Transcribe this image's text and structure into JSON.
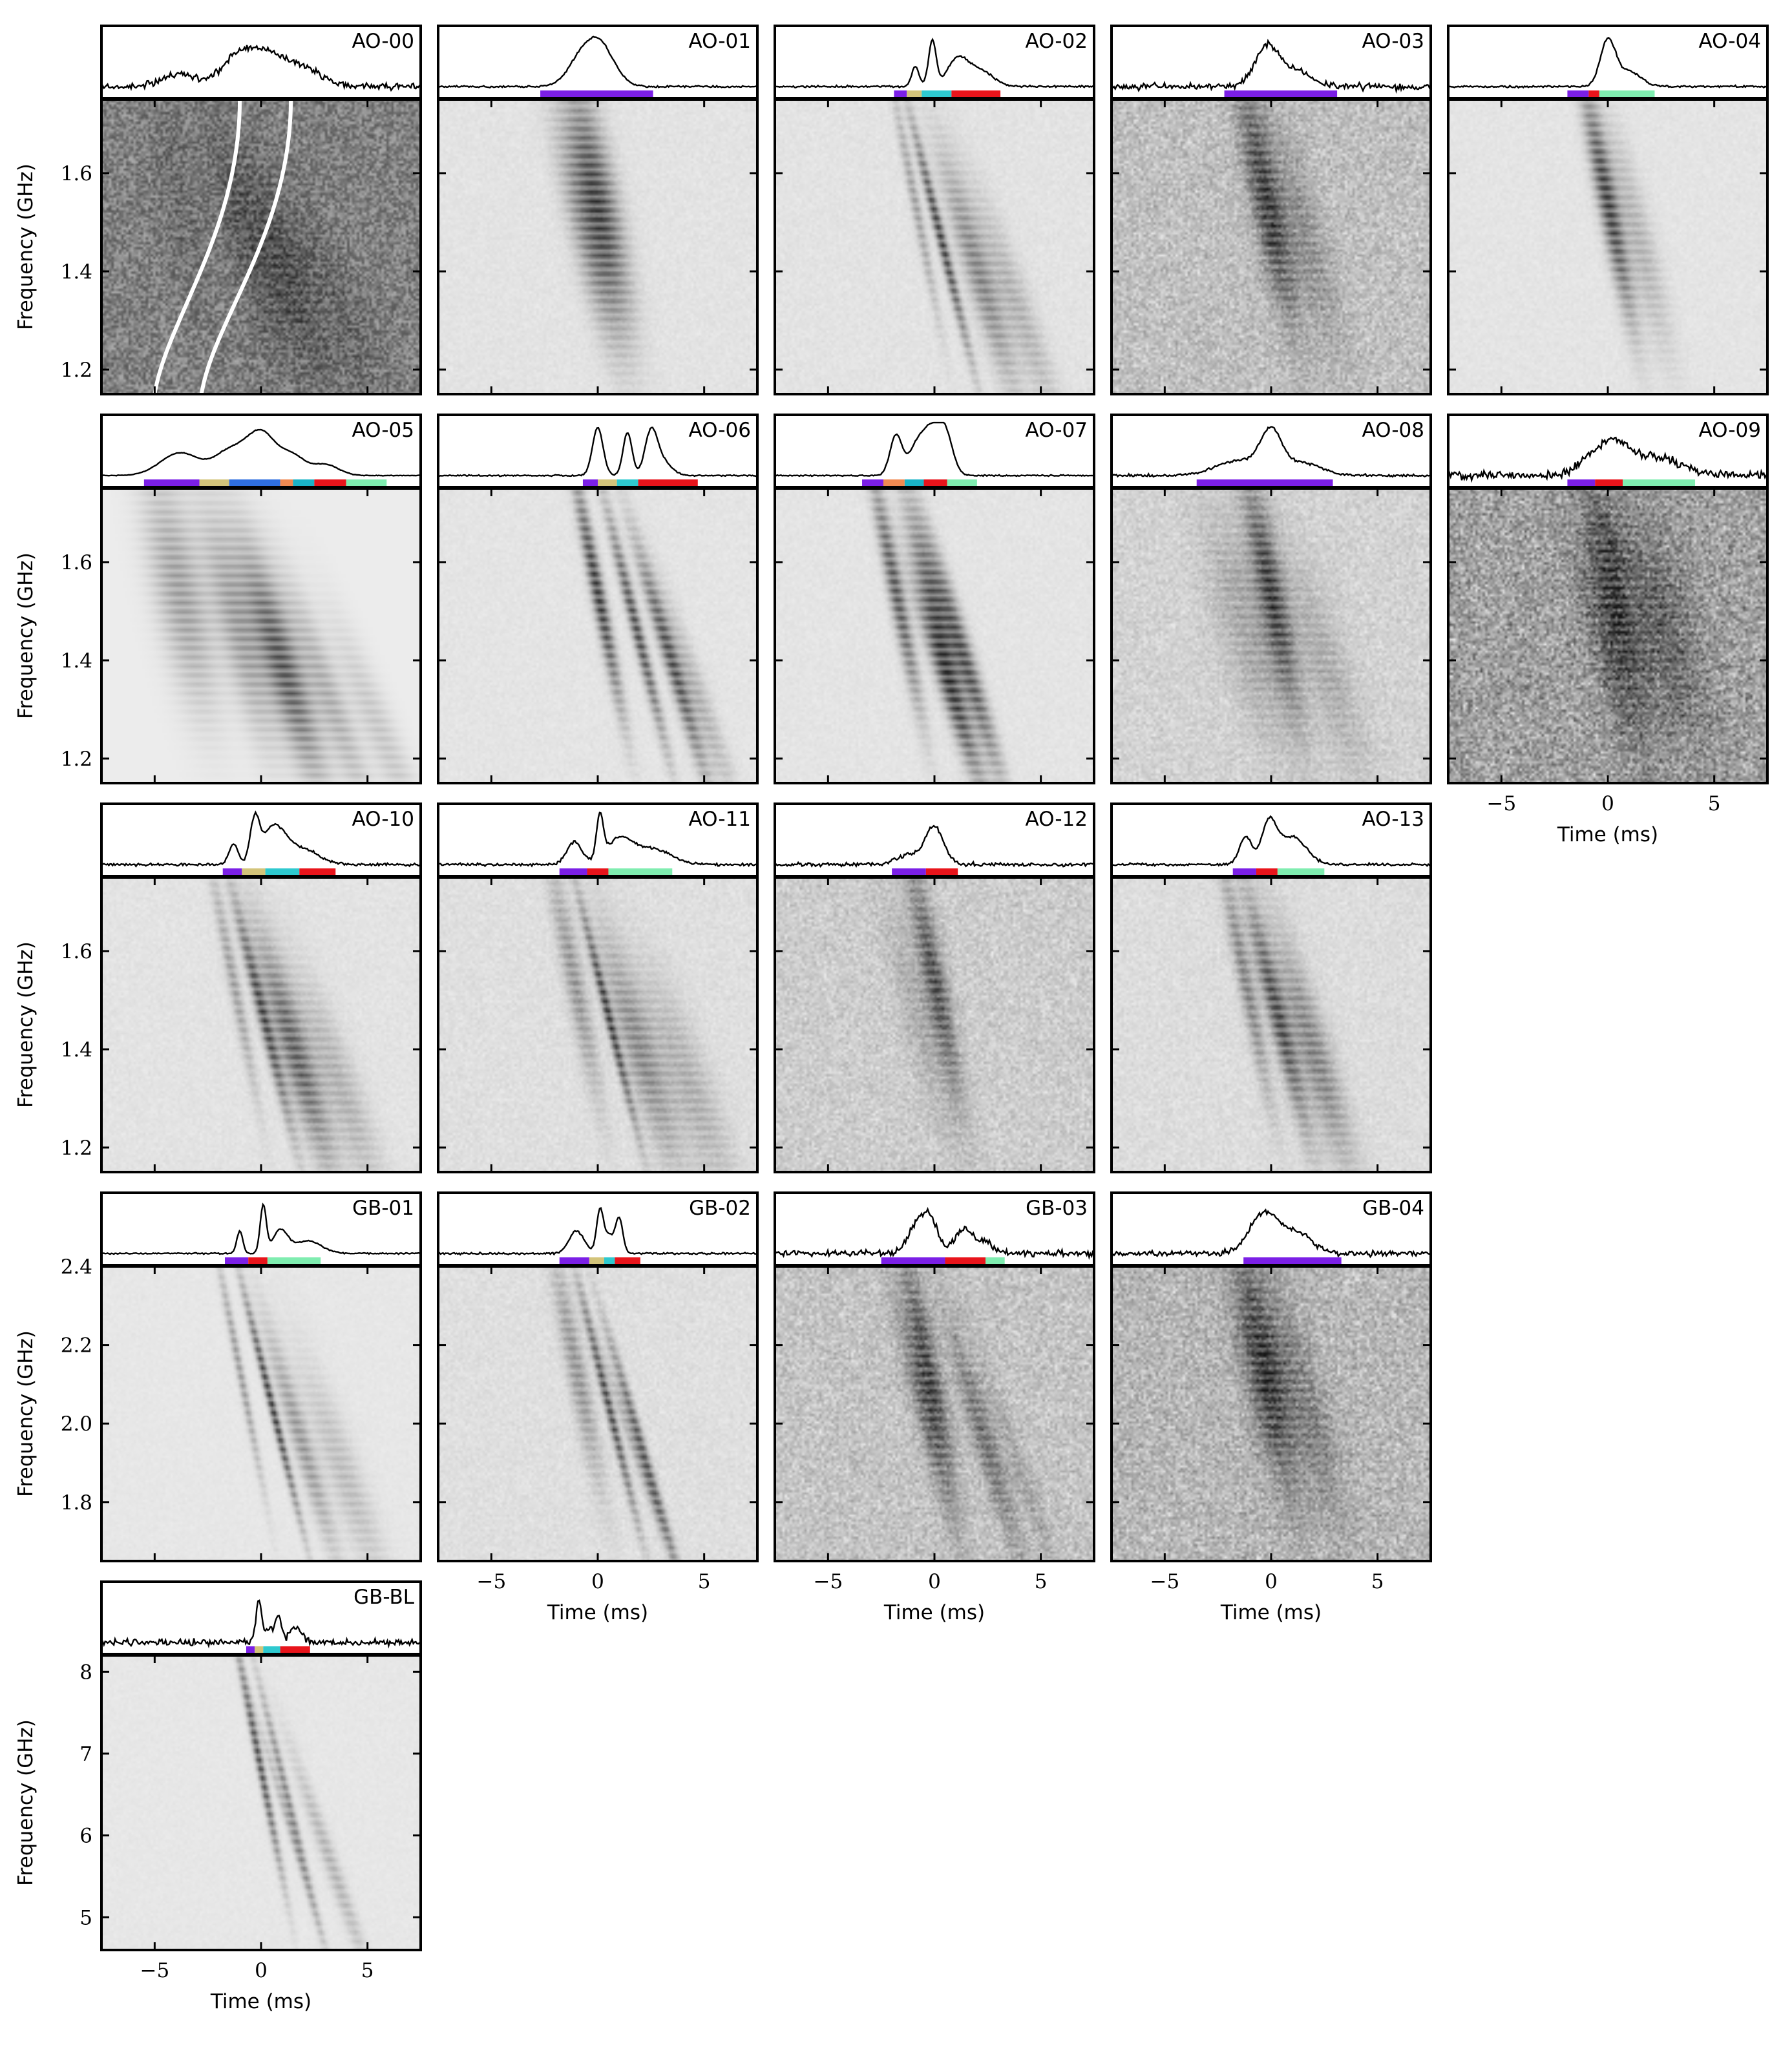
{
  "figure": {
    "background": "#ffffff",
    "colors": {
      "purple": "#7b1fe6",
      "khaki": "#d3c47a",
      "cyan": "#2ec9cf",
      "red": "#e8141b",
      "mint": "#7fedb0",
      "blue": "#2f6fe0",
      "orange": "#f08a52",
      "teal": "#1ab3c7",
      "axes": "#000000"
    }
  },
  "chart_data": [
    {
      "type": "heatmap",
      "title": "AO-00",
      "ylabel": "Frequency (GHz)",
      "xlabel": "",
      "xlim": [
        -7.5,
        7.5
      ],
      "ylim": [
        1.15,
        1.75
      ],
      "yticks": [
        "1.2",
        "1.4",
        "1.6"
      ],
      "xticks": [],
      "noise_level": 0.45,
      "profile": {
        "noise": 0.05,
        "components": [
          {
            "t": -3.8,
            "a": 0.25,
            "w": 1.2
          },
          {
            "t": -1.2,
            "a": 0.5,
            "w": 1.0
          },
          {
            "t": 0.2,
            "a": 0.65,
            "w": 1.2
          },
          {
            "t": 2.0,
            "a": 0.35,
            "w": 1.2
          }
        ]
      },
      "segments": [],
      "drift_lines": true
    },
    {
      "type": "heatmap",
      "title": "AO-01",
      "xlim": [
        -7.5,
        7.5
      ],
      "ylim": [
        1.15,
        1.75
      ],
      "noise_level": 0.07,
      "profile": {
        "noise": 0.015,
        "components": [
          {
            "t": 0.0,
            "a": 0.9,
            "w": 1.0
          },
          {
            "t": -1.0,
            "a": 0.3,
            "w": 0.8
          }
        ]
      },
      "segments": [
        {
          "from": -2.7,
          "to": 2.6,
          "color": "purple"
        }
      ]
    },
    {
      "type": "heatmap",
      "title": "AO-02",
      "xlim": [
        -7.5,
        7.5
      ],
      "ylim": [
        1.15,
        1.75
      ],
      "noise_level": 0.07,
      "profile": {
        "noise": 0.015,
        "components": [
          {
            "t": -0.9,
            "a": 0.4,
            "w": 0.25
          },
          {
            "t": -0.1,
            "a": 0.9,
            "w": 0.25
          },
          {
            "t": 1.1,
            "a": 0.55,
            "w": 0.7
          },
          {
            "t": 2.2,
            "a": 0.3,
            "w": 0.8
          }
        ]
      },
      "segments": [
        {
          "from": -1.9,
          "to": -1.3,
          "color": "purple"
        },
        {
          "from": -1.3,
          "to": -0.6,
          "color": "khaki"
        },
        {
          "from": -0.6,
          "to": 0.8,
          "color": "cyan"
        },
        {
          "from": 0.8,
          "to": 3.1,
          "color": "red"
        }
      ]
    },
    {
      "type": "heatmap",
      "title": "AO-03",
      "xlim": [
        -7.5,
        7.5
      ],
      "ylim": [
        1.15,
        1.75
      ],
      "noise_level": 0.35,
      "profile": {
        "noise": 0.05,
        "components": [
          {
            "t": -0.2,
            "a": 0.8,
            "w": 0.8
          },
          {
            "t": 1.2,
            "a": 0.3,
            "w": 1.0
          }
        ]
      },
      "segments": [
        {
          "from": -2.2,
          "to": 3.1,
          "color": "purple"
        }
      ]
    },
    {
      "type": "heatmap",
      "title": "AO-04",
      "xlim": [
        -7.5,
        7.5
      ],
      "ylim": [
        1.15,
        1.75
      ],
      "noise_level": 0.06,
      "profile": {
        "noise": 0.015,
        "components": [
          {
            "t": 0.0,
            "a": 0.9,
            "w": 0.5
          },
          {
            "t": 1.0,
            "a": 0.3,
            "w": 0.8
          }
        ]
      },
      "segments": [
        {
          "from": -1.9,
          "to": -0.9,
          "color": "purple"
        },
        {
          "from": -0.9,
          "to": -0.4,
          "color": "red"
        },
        {
          "from": -0.4,
          "to": 2.2,
          "color": "mint"
        }
      ]
    },
    {
      "type": "heatmap",
      "title": "AO-05",
      "ylabel": "Frequency (GHz)",
      "xlim": [
        -7.5,
        7.5
      ],
      "ylim": [
        1.15,
        1.75
      ],
      "yticks": [
        "1.2",
        "1.4",
        "1.6"
      ],
      "noise_level": 0.0,
      "profile": {
        "noise": 0.005,
        "components": [
          {
            "t": -3.8,
            "a": 0.45,
            "w": 1.3
          },
          {
            "t": -1.5,
            "a": 0.45,
            "w": 1.0
          },
          {
            "t": 0.0,
            "a": 0.85,
            "w": 1.0
          },
          {
            "t": 1.5,
            "a": 0.35,
            "w": 0.8
          },
          {
            "t": 3.0,
            "a": 0.22,
            "w": 0.9
          }
        ]
      },
      "segments": [
        {
          "from": -5.5,
          "to": -2.9,
          "color": "purple"
        },
        {
          "from": -2.9,
          "to": -1.5,
          "color": "khaki"
        },
        {
          "from": -1.5,
          "to": 0.9,
          "color": "blue"
        },
        {
          "from": 0.9,
          "to": 1.5,
          "color": "orange"
        },
        {
          "from": 1.5,
          "to": 2.5,
          "color": "teal"
        },
        {
          "from": 2.5,
          "to": 4.0,
          "color": "red"
        },
        {
          "from": 4.0,
          "to": 5.9,
          "color": "mint"
        }
      ]
    },
    {
      "type": "heatmap",
      "title": "AO-06",
      "xlim": [
        -7.5,
        7.5
      ],
      "ylim": [
        1.15,
        1.75
      ],
      "noise_level": 0.06,
      "profile": {
        "noise": 0.01,
        "components": [
          {
            "t": 0.0,
            "a": 0.95,
            "w": 0.35
          },
          {
            "t": 1.4,
            "a": 0.85,
            "w": 0.3
          },
          {
            "t": 2.5,
            "a": 0.8,
            "w": 0.4
          },
          {
            "t": 3.0,
            "a": 0.3,
            "w": 0.6
          }
        ]
      },
      "segments": [
        {
          "from": -0.7,
          "to": 0.0,
          "color": "purple"
        },
        {
          "from": 0.0,
          "to": 0.9,
          "color": "khaki"
        },
        {
          "from": 0.9,
          "to": 1.9,
          "color": "cyan"
        },
        {
          "from": 1.9,
          "to": 4.7,
          "color": "red"
        }
      ]
    },
    {
      "type": "heatmap",
      "title": "AO-07",
      "xlim": [
        -7.5,
        7.5
      ],
      "ylim": [
        1.15,
        1.75
      ],
      "noise_level": 0.06,
      "profile": {
        "noise": 0.01,
        "components": [
          {
            "t": -1.8,
            "a": 0.8,
            "w": 0.4
          },
          {
            "t": -0.2,
            "a": 0.85,
            "w": 0.6
          },
          {
            "t": 0.5,
            "a": 0.8,
            "w": 0.5
          },
          {
            "t": -0.9,
            "a": 0.45,
            "w": 0.5
          }
        ]
      },
      "segments": [
        {
          "from": -3.4,
          "to": -2.4,
          "color": "purple"
        },
        {
          "from": -2.4,
          "to": -1.4,
          "color": "orange"
        },
        {
          "from": -1.4,
          "to": -0.5,
          "color": "teal"
        },
        {
          "from": -0.5,
          "to": 0.6,
          "color": "red"
        },
        {
          "from": 0.6,
          "to": 2.0,
          "color": "mint"
        }
      ]
    },
    {
      "type": "heatmap",
      "title": "AO-08",
      "xlim": [
        -7.5,
        7.5
      ],
      "ylim": [
        1.15,
        1.75
      ],
      "noise_level": 0.2,
      "profile": {
        "noise": 0.02,
        "components": [
          {
            "t": 0.0,
            "a": 0.8,
            "w": 0.7
          },
          {
            "t": -1.5,
            "a": 0.3,
            "w": 1.5
          },
          {
            "t": 1.5,
            "a": 0.25,
            "w": 1.2
          }
        ]
      },
      "segments": [
        {
          "from": -3.5,
          "to": 2.9,
          "color": "purple"
        }
      ]
    },
    {
      "type": "heatmap",
      "title": "AO-09",
      "xlabel": "Time (ms)",
      "xlim": [
        -7.5,
        7.5
      ],
      "ylim": [
        1.15,
        1.75
      ],
      "xticks": [
        "−5",
        "0",
        "5"
      ],
      "noise_level": 0.6,
      "profile": {
        "noise": 0.06,
        "components": [
          {
            "t": 0.2,
            "a": 0.55,
            "w": 0.9
          },
          {
            "t": 2.0,
            "a": 0.4,
            "w": 1.8
          },
          {
            "t": -1.0,
            "a": 0.25,
            "w": 0.8
          }
        ]
      },
      "segments": [
        {
          "from": -1.9,
          "to": -0.6,
          "color": "purple"
        },
        {
          "from": -0.6,
          "to": 0.7,
          "color": "red"
        },
        {
          "from": 0.7,
          "to": 4.1,
          "color": "mint"
        }
      ]
    },
    {
      "type": "heatmap",
      "title": "AO-10",
      "ylabel": "Frequency (GHz)",
      "xlim": [
        -7.5,
        7.5
      ],
      "ylim": [
        1.15,
        1.75
      ],
      "yticks": [
        "1.2",
        "1.4",
        "1.6"
      ],
      "noise_level": 0.07,
      "profile": {
        "noise": 0.02,
        "components": [
          {
            "t": -1.3,
            "a": 0.4,
            "w": 0.3
          },
          {
            "t": -0.3,
            "a": 0.8,
            "w": 0.3
          },
          {
            "t": 0.6,
            "a": 0.75,
            "w": 0.8
          },
          {
            "t": 2.0,
            "a": 0.3,
            "w": 1.0
          }
        ]
      },
      "segments": [
        {
          "from": -1.8,
          "to": -0.9,
          "color": "purple"
        },
        {
          "from": -0.9,
          "to": 0.2,
          "color": "khaki"
        },
        {
          "from": 0.2,
          "to": 1.8,
          "color": "cyan"
        },
        {
          "from": 1.8,
          "to": 3.5,
          "color": "red"
        }
      ]
    },
    {
      "type": "heatmap",
      "title": "AO-11",
      "xlim": [
        -7.5,
        7.5
      ],
      "ylim": [
        1.15,
        1.75
      ],
      "noise_level": 0.1,
      "profile": {
        "noise": 0.02,
        "components": [
          {
            "t": -1.1,
            "a": 0.45,
            "w": 0.5
          },
          {
            "t": 0.1,
            "a": 0.85,
            "w": 0.22
          },
          {
            "t": 1.0,
            "a": 0.5,
            "w": 0.9
          },
          {
            "t": 2.6,
            "a": 0.3,
            "w": 1.2
          }
        ]
      },
      "segments": [
        {
          "from": -1.8,
          "to": -0.5,
          "color": "purple"
        },
        {
          "from": -0.5,
          "to": 0.5,
          "color": "red"
        },
        {
          "from": 0.5,
          "to": 3.5,
          "color": "mint"
        }
      ]
    },
    {
      "type": "heatmap",
      "title": "AO-12",
      "xlim": [
        -7.5,
        7.5
      ],
      "ylim": [
        1.15,
        1.75
      ],
      "noise_level": 0.25,
      "profile": {
        "noise": 0.03,
        "components": [
          {
            "t": 0.0,
            "a": 0.75,
            "w": 0.6
          },
          {
            "t": -1.2,
            "a": 0.2,
            "w": 0.8
          }
        ]
      },
      "segments": [
        {
          "from": -2.0,
          "to": -0.4,
          "color": "purple"
        },
        {
          "from": -0.4,
          "to": 1.1,
          "color": "red"
        }
      ]
    },
    {
      "type": "heatmap",
      "title": "AO-13",
      "xlim": [
        -7.5,
        7.5
      ],
      "ylim": [
        1.15,
        1.75
      ],
      "noise_level": 0.12,
      "profile": {
        "noise": 0.02,
        "components": [
          {
            "t": -1.2,
            "a": 0.55,
            "w": 0.4
          },
          {
            "t": -0.1,
            "a": 0.8,
            "w": 0.5
          },
          {
            "t": 1.0,
            "a": 0.55,
            "w": 0.9
          }
        ]
      },
      "segments": [
        {
          "from": -1.8,
          "to": -0.7,
          "color": "purple"
        },
        {
          "from": -0.7,
          "to": 0.3,
          "color": "red"
        },
        {
          "from": 0.3,
          "to": 2.5,
          "color": "mint"
        }
      ]
    },
    {
      "type": "heatmap",
      "title": "GB-01",
      "ylabel": "Frequency (GHz)",
      "xlim": [
        -7.5,
        7.5
      ],
      "ylim": [
        1.65,
        2.4
      ],
      "yticks": [
        "1.8",
        "2.0",
        "2.2",
        "2.4"
      ],
      "noise_level": 0.04,
      "profile": {
        "noise": 0.01,
        "components": [
          {
            "t": -1.0,
            "a": 0.45,
            "w": 0.2
          },
          {
            "t": 0.1,
            "a": 0.95,
            "w": 0.2
          },
          {
            "t": 0.9,
            "a": 0.45,
            "w": 0.5
          },
          {
            "t": 2.2,
            "a": 0.25,
            "w": 0.9
          }
        ]
      },
      "segments": [
        {
          "from": -1.7,
          "to": -0.6,
          "color": "purple"
        },
        {
          "from": -0.6,
          "to": 0.3,
          "color": "red"
        },
        {
          "from": 0.3,
          "to": 2.8,
          "color": "mint"
        }
      ]
    },
    {
      "type": "heatmap",
      "title": "GB-02",
      "xlabel": "Time (ms)",
      "xlim": [
        -7.5,
        7.5
      ],
      "ylim": [
        1.65,
        2.4
      ],
      "xticks": [
        "−5",
        "0",
        "5"
      ],
      "noise_level": 0.1,
      "profile": {
        "noise": 0.015,
        "components": [
          {
            "t": -1.0,
            "a": 0.45,
            "w": 0.5
          },
          {
            "t": 0.1,
            "a": 0.85,
            "w": 0.22
          },
          {
            "t": 1.0,
            "a": 0.7,
            "w": 0.25
          },
          {
            "t": 0.5,
            "a": 0.35,
            "w": 0.3
          }
        ]
      },
      "segments": [
        {
          "from": -1.8,
          "to": -0.4,
          "color": "purple"
        },
        {
          "from": -0.4,
          "to": 0.3,
          "color": "khaki"
        },
        {
          "from": 0.3,
          "to": 0.8,
          "color": "cyan"
        },
        {
          "from": 0.8,
          "to": 2.0,
          "color": "red"
        }
      ]
    },
    {
      "type": "heatmap",
      "title": "GB-03",
      "xlabel": "Time (ms)",
      "xlim": [
        -7.5,
        7.5
      ],
      "ylim": [
        1.65,
        2.4
      ],
      "xticks": [
        "−5",
        "0",
        "5"
      ],
      "noise_level": 0.32,
      "profile": {
        "noise": 0.05,
        "components": [
          {
            "t": -0.3,
            "a": 0.75,
            "w": 0.6
          },
          {
            "t": -1.0,
            "a": 0.35,
            "w": 0.5
          },
          {
            "t": 1.4,
            "a": 0.5,
            "w": 0.6
          },
          {
            "t": 2.4,
            "a": 0.2,
            "w": 0.5
          }
        ]
      },
      "segments": [
        {
          "from": -2.5,
          "to": 0.5,
          "color": "purple"
        },
        {
          "from": 0.5,
          "to": 2.4,
          "color": "red"
        },
        {
          "from": 2.4,
          "to": 3.3,
          "color": "mint"
        }
      ]
    },
    {
      "type": "heatmap",
      "title": "GB-04",
      "xlabel": "Time (ms)",
      "xlim": [
        -7.5,
        7.5
      ],
      "ylim": [
        1.65,
        2.4
      ],
      "xticks": [
        "−5",
        "0",
        "5"
      ],
      "noise_level": 0.42,
      "profile": {
        "noise": 0.04,
        "components": [
          {
            "t": -0.3,
            "a": 0.8,
            "w": 1.0
          },
          {
            "t": 1.3,
            "a": 0.35,
            "w": 1.0
          }
        ]
      },
      "segments": [
        {
          "from": -1.3,
          "to": 3.3,
          "color": "purple"
        }
      ]
    },
    {
      "type": "heatmap",
      "title": "GB-BL",
      "ylabel": "Frequency (GHz)",
      "xlabel": "Time (ms)",
      "xlim": [
        -7.5,
        7.5
      ],
      "ylim": [
        4.6,
        8.2
      ],
      "yticks": [
        "5",
        "6",
        "7",
        "8"
      ],
      "xticks": [
        "−5",
        "0",
        "5"
      ],
      "noise_level": 0.04,
      "profile": {
        "noise": 0.05,
        "components": [
          {
            "t": -0.1,
            "a": 0.85,
            "w": 0.2
          },
          {
            "t": 0.8,
            "a": 0.55,
            "w": 0.2
          },
          {
            "t": 0.4,
            "a": 0.3,
            "w": 0.2
          },
          {
            "t": 1.6,
            "a": 0.3,
            "w": 0.4
          }
        ]
      },
      "segments": [
        {
          "from": -0.7,
          "to": -0.3,
          "color": "purple"
        },
        {
          "from": -0.3,
          "to": 0.1,
          "color": "khaki"
        },
        {
          "from": 0.1,
          "to": 0.9,
          "color": "cyan"
        },
        {
          "from": 0.9,
          "to": 2.3,
          "color": "red"
        }
      ]
    }
  ]
}
